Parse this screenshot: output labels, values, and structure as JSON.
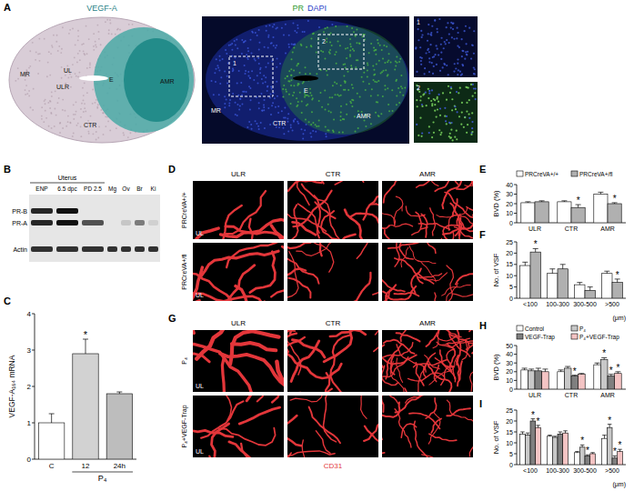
{
  "figure": {
    "A": {
      "letter": "A",
      "left_title": "VEGF-A",
      "left_labels": [
        "MR",
        "UL",
        "ULR",
        "E",
        "CTR",
        "AMR"
      ],
      "right_title": [
        "PR",
        "DAPI"
      ],
      "right_labels": [
        "MR",
        "E",
        "CTR",
        "AMR"
      ],
      "boxes": [
        "1",
        "2"
      ],
      "insets": [
        "1",
        "2"
      ]
    },
    "B": {
      "letter": "B",
      "group": "Uterus",
      "lanes": [
        "ENP",
        "6.5 dpc",
        "PD 2.5",
        "Mg",
        "Ov",
        "Br",
        "Ki"
      ],
      "bands": [
        "PR-B",
        "PR-A",
        "Actin"
      ]
    },
    "D": {
      "letter": "D",
      "columns": [
        "ULR",
        "CTR",
        "AMR"
      ],
      "rows": [
        "PRCreVA+/+",
        "PRCreVA+/fl"
      ],
      "inner_label": "UL"
    },
    "G": {
      "letter": "G",
      "columns": [
        "ULR",
        "CTR",
        "AMR"
      ],
      "rows": [
        "P₄",
        "P₄+VEGF-Trap"
      ],
      "inner_label": "UL",
      "stain": "CD31"
    }
  },
  "chart_data": [
    {
      "panel": "C",
      "type": "bar",
      "ylabel": "VEGF-A₁₆₄ mRNA",
      "xlabel": "P₄",
      "categories": [
        "C",
        "12",
        "24h"
      ],
      "values": [
        1.0,
        2.9,
        1.8
      ],
      "errors": [
        0.25,
        0.4,
        0.05
      ],
      "colors": [
        "#ffffff",
        "#d2d2d2",
        "#bdbdbd"
      ],
      "ylim": [
        0,
        4
      ],
      "yticks": [
        0,
        1,
        2,
        3,
        4
      ],
      "annotations": [
        {
          "index": 1,
          "text": "*"
        }
      ]
    },
    {
      "panel": "E",
      "type": "bar",
      "ylabel": "BVD (%)",
      "categories": [
        "ULR",
        "CTR",
        "AMR"
      ],
      "series": [
        {
          "name": "PRCreVA+/+",
          "color": "#ffffff",
          "values": [
            21,
            22,
            30
          ],
          "errors": [
            1,
            1,
            2
          ]
        },
        {
          "name": "PRCreVA+/fl",
          "color": "#b0b0b0",
          "values": [
            22,
            16,
            20
          ],
          "errors": [
            1,
            3,
            1
          ]
        }
      ],
      "ylim": [
        0,
        40
      ],
      "yticks": [
        0,
        10,
        20,
        30,
        40
      ],
      "legend": "top",
      "annotations": [
        {
          "series": 1,
          "index": 1,
          "text": "*"
        },
        {
          "series": 1,
          "index": 2,
          "text": "*"
        }
      ]
    },
    {
      "panel": "F",
      "type": "bar",
      "ylabel": "No. of VSF",
      "xlabel": "(μm)",
      "categories": [
        "<100",
        "100-300",
        "300-500",
        ">500"
      ],
      "series": [
        {
          "color": "#ffffff",
          "values": [
            14.5,
            11,
            6,
            11
          ],
          "errors": [
            1.5,
            2,
            1,
            1
          ]
        },
        {
          "color": "#b0b0b0",
          "values": [
            20.5,
            13,
            3.5,
            7
          ],
          "errors": [
            1.5,
            2,
            1.5,
            1.5
          ]
        }
      ],
      "ylim": [
        0,
        25
      ],
      "yticks": [
        0,
        5,
        10,
        15,
        20,
        25
      ],
      "annotations": [
        {
          "series": 1,
          "index": 0,
          "text": "*"
        },
        {
          "series": 1,
          "index": 3,
          "text": "*"
        }
      ]
    },
    {
      "panel": "H",
      "type": "bar",
      "ylabel": "BVD (%)",
      "categories": [
        "ULR",
        "CTR",
        "AMR"
      ],
      "series": [
        {
          "name": "Control",
          "color": "#ffffff",
          "values": [
            22,
            20,
            28
          ],
          "errors": [
            2,
            2,
            2
          ]
        },
        {
          "name": "P₄",
          "color": "#c8c8c8",
          "values": [
            21,
            24,
            34
          ],
          "errors": [
            2,
            2,
            2
          ]
        },
        {
          "name": "VEGF-Trap",
          "color": "#7f7f7f",
          "values": [
            21,
            15,
            15
          ],
          "errors": [
            3,
            1,
            2
          ]
        },
        {
          "name": "P₄+VEGF-Trap",
          "color": "#f4c4c4",
          "values": [
            20,
            17,
            18
          ],
          "errors": [
            3,
            1,
            2
          ]
        }
      ],
      "ylim": [
        0,
        50
      ],
      "yticks": [
        0,
        10,
        20,
        30,
        40,
        50
      ],
      "legend": "top",
      "annotations": [
        {
          "series": 2,
          "index": 1,
          "text": "*"
        },
        {
          "series": 1,
          "index": 2,
          "text": "*"
        },
        {
          "series": 2,
          "index": 2,
          "text": "*"
        },
        {
          "series": 3,
          "index": 2,
          "text": "*"
        }
      ]
    },
    {
      "panel": "I",
      "type": "bar",
      "ylabel": "No. of VSF",
      "xlabel": "(μm)",
      "categories": [
        "<100",
        "100-300",
        "300-500",
        ">500"
      ],
      "series": [
        {
          "color": "#ffffff",
          "values": [
            14,
            13,
            5.5,
            12
          ],
          "errors": [
            1,
            0.5,
            0.5,
            1.5
          ]
        },
        {
          "color": "#c8c8c8",
          "values": [
            13.5,
            12.5,
            8,
            17
          ],
          "errors": [
            1,
            0.5,
            1,
            1.5
          ]
        },
        {
          "color": "#7f7f7f",
          "values": [
            20,
            14,
            4,
            3
          ],
          "errors": [
            1,
            1,
            0.5,
            1
          ]
        },
        {
          "color": "#f4c4c4",
          "values": [
            17,
            14.5,
            5,
            6
          ],
          "errors": [
            1,
            1,
            0.5,
            1
          ]
        }
      ],
      "ylim": [
        0,
        25
      ],
      "yticks": [
        0,
        5,
        10,
        15,
        20,
        25
      ],
      "annotations": [
        {
          "series": 2,
          "index": 0,
          "text": "*"
        },
        {
          "series": 3,
          "index": 0,
          "text": "*"
        },
        {
          "series": 1,
          "index": 2,
          "text": "*"
        },
        {
          "series": 2,
          "index": 2,
          "text": "*"
        },
        {
          "series": 1,
          "index": 3,
          "text": "*"
        },
        {
          "series": 2,
          "index": 3,
          "text": "*"
        },
        {
          "series": 3,
          "index": 3,
          "text": "*"
        }
      ]
    }
  ]
}
